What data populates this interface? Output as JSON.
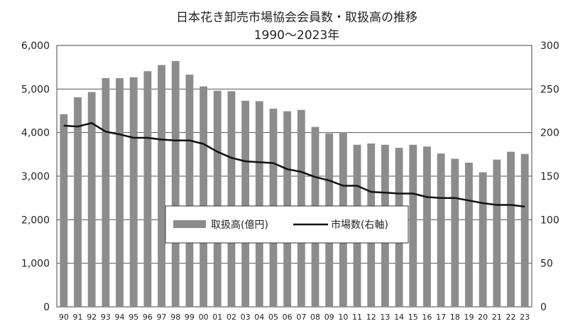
{
  "chart_data": {
    "type": "bar",
    "title": "日本花き卸売市場協会会員数・取扱高の推移",
    "subtitle": "1990～2023年",
    "categories": [
      "90",
      "91",
      "92",
      "93",
      "94",
      "95",
      "96",
      "97",
      "98",
      "99",
      "00",
      "01",
      "02",
      "03",
      "04",
      "05",
      "06",
      "07",
      "08",
      "09",
      "10",
      "11",
      "12",
      "13",
      "14",
      "15",
      "16",
      "17",
      "18",
      "19",
      "20",
      "21",
      "22",
      "23"
    ],
    "series": [
      {
        "name": "取扱高(億円)",
        "type": "bar",
        "axis": "left",
        "color": "#8c8c8c",
        "values": [
          4420,
          4810,
          4930,
          5250,
          5250,
          5270,
          5410,
          5550,
          5640,
          5330,
          5060,
          4960,
          4950,
          4730,
          4720,
          4550,
          4490,
          4520,
          4130,
          3980,
          4010,
          3720,
          3750,
          3720,
          3650,
          3720,
          3680,
          3520,
          3400,
          3310,
          3090,
          3380,
          3560,
          3510
        ]
      },
      {
        "name": "市場数(右軸)",
        "type": "line",
        "axis": "right",
        "color": "#111111",
        "values": [
          208,
          207,
          211,
          201,
          198,
          194,
          194,
          192,
          191,
          191,
          187,
          178,
          171,
          167,
          166,
          165,
          158,
          155,
          149,
          145,
          139,
          139,
          132,
          131,
          130,
          130,
          126,
          125,
          125,
          122,
          119,
          117,
          117,
          115
        ]
      }
    ],
    "y_left": {
      "min": 0,
      "max": 6000,
      "ticks": [
        "0",
        "1,000",
        "2,000",
        "3,000",
        "4,000",
        "5,000",
        "6,000"
      ]
    },
    "y_right": {
      "min": 0,
      "max": 300,
      "ticks": [
        "0",
        "50",
        "100",
        "150",
        "200",
        "250",
        "300"
      ]
    },
    "grid": true,
    "legend_position": "center"
  }
}
